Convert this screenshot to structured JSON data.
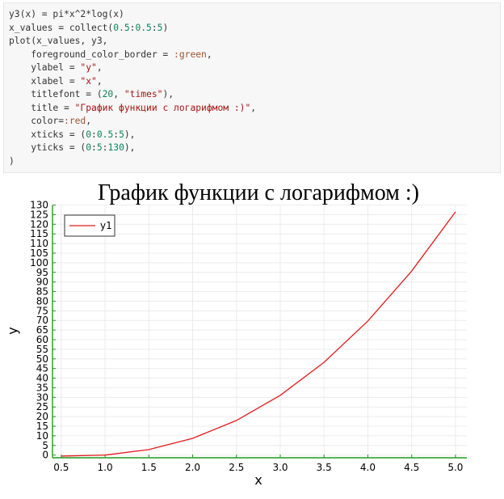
{
  "code_cell": {
    "lines": [
      [
        {
          "t": "y3(x) = pi*x^2*log(x)",
          "c": "plain"
        }
      ],
      [
        {
          "t": "x_values = collect(",
          "c": "plain"
        },
        {
          "t": "0.5",
          "c": "num"
        },
        {
          "t": ":",
          "c": "plain"
        },
        {
          "t": "0.5",
          "c": "num"
        },
        {
          "t": ":",
          "c": "plain"
        },
        {
          "t": "5",
          "c": "num"
        },
        {
          "t": ")",
          "c": "plain"
        }
      ],
      [
        {
          "t": "plot(x_values, y3,",
          "c": "plain"
        }
      ],
      [
        {
          "t": "    foreground_color_border = ",
          "c": "plain"
        },
        {
          "t": ":green",
          "c": "sym"
        },
        {
          "t": ",",
          "c": "plain"
        }
      ],
      [
        {
          "t": "    ylabel = ",
          "c": "plain"
        },
        {
          "t": "\"y\"",
          "c": "str"
        },
        {
          "t": ",",
          "c": "plain"
        }
      ],
      [
        {
          "t": "    xlabel = ",
          "c": "plain"
        },
        {
          "t": "\"x\"",
          "c": "str"
        },
        {
          "t": ",",
          "c": "plain"
        }
      ],
      [
        {
          "t": "    titlefont = (",
          "c": "plain"
        },
        {
          "t": "20",
          "c": "num"
        },
        {
          "t": ", ",
          "c": "plain"
        },
        {
          "t": "\"times\"",
          "c": "str"
        },
        {
          "t": "),",
          "c": "plain"
        }
      ],
      [
        {
          "t": "    title = ",
          "c": "plain"
        },
        {
          "t": "\"График функции с логарифмом :)\"",
          "c": "str"
        },
        {
          "t": ",",
          "c": "plain"
        }
      ],
      [
        {
          "t": "    color=",
          "c": "plain"
        },
        {
          "t": ":red",
          "c": "sym"
        },
        {
          "t": ",",
          "c": "plain"
        }
      ],
      [
        {
          "t": "    xticks = (",
          "c": "plain"
        },
        {
          "t": "0",
          "c": "num"
        },
        {
          "t": ":",
          "c": "plain"
        },
        {
          "t": "0.5",
          "c": "num"
        },
        {
          "t": ":",
          "c": "plain"
        },
        {
          "t": "5",
          "c": "num"
        },
        {
          "t": "),",
          "c": "plain"
        }
      ],
      [
        {
          "t": "    yticks = (",
          "c": "plain"
        },
        {
          "t": "0",
          "c": "num"
        },
        {
          "t": ":",
          "c": "plain"
        },
        {
          "t": "5",
          "c": "num"
        },
        {
          "t": ":",
          "c": "plain"
        },
        {
          "t": "130",
          "c": "num"
        },
        {
          "t": "),",
          "c": "plain"
        }
      ],
      [
        {
          "t": ")",
          "c": "plain"
        }
      ]
    ]
  },
  "chart_data": {
    "type": "line",
    "title": "График функции с логарифмом :)",
    "xlabel": "x",
    "ylabel": "y",
    "xlim": [
      0.4,
      5.13
    ],
    "ylim": [
      -1.4,
      129.8
    ],
    "xticks": [
      0.5,
      1.0,
      1.5,
      2.0,
      2.5,
      3.0,
      3.5,
      4.0,
      4.5,
      5.0
    ],
    "xtick_labels": [
      "0.5",
      "1.0",
      "1.5",
      "2.0",
      "2.5",
      "3.0",
      "3.5",
      "4.0",
      "4.5",
      "5.0"
    ],
    "yticks": [
      0,
      5,
      10,
      15,
      20,
      25,
      30,
      35,
      40,
      45,
      50,
      55,
      60,
      65,
      70,
      75,
      80,
      85,
      90,
      95,
      100,
      105,
      110,
      115,
      120,
      125,
      130
    ],
    "grid": true,
    "legend_position": "top-left",
    "colors": {
      "line": "#e41a1c",
      "border": "#1f9a1f",
      "grid": "#ececec"
    },
    "series": [
      {
        "name": "y1",
        "x": [
          0.5,
          1.0,
          1.5,
          2.0,
          2.5,
          3.0,
          3.5,
          4.0,
          4.5,
          5.0
        ],
        "values": [
          -0.54,
          0.0,
          2.87,
          8.71,
          17.99,
          31.06,
          48.22,
          69.69,
          95.66,
          126.42
        ]
      }
    ]
  }
}
